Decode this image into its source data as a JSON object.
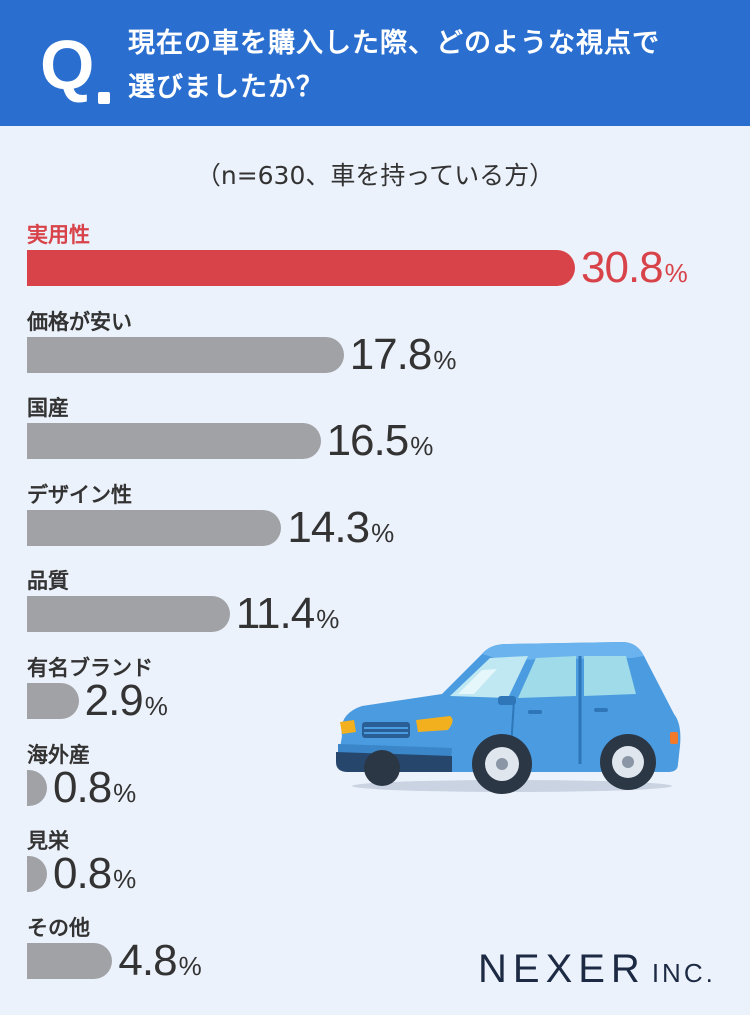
{
  "header": {
    "q_mark": "Q",
    "question_line1": "現在の車を購入した際、どのような視点で",
    "question_line2": "選びましたか？"
  },
  "sample_note": "（n=630、車を持っている方）",
  "logo": {
    "main": "NEXER",
    "sub": "INC."
  },
  "colors": {
    "header_bg": "#2a6fd0",
    "highlight": "#d8434a",
    "bar": "#a1a2a6",
    "background": "#ecf2fb"
  },
  "chart_data": {
    "type": "bar",
    "orientation": "horizontal",
    "categories": [
      "実用性",
      "価格が安い",
      "国産",
      "デザイン性",
      "品質",
      "有名ブランド",
      "海外産",
      "見栄",
      "その他"
    ],
    "values": [
      30.8,
      17.8,
      16.5,
      14.3,
      11.4,
      2.9,
      0.8,
      0.8,
      4.8
    ],
    "value_labels": [
      "30.8",
      "17.8",
      "16.5",
      "14.3",
      "11.4",
      "2.9",
      "0.8",
      "0.8",
      "4.8"
    ],
    "unit": "%",
    "highlight_index": 0
  }
}
